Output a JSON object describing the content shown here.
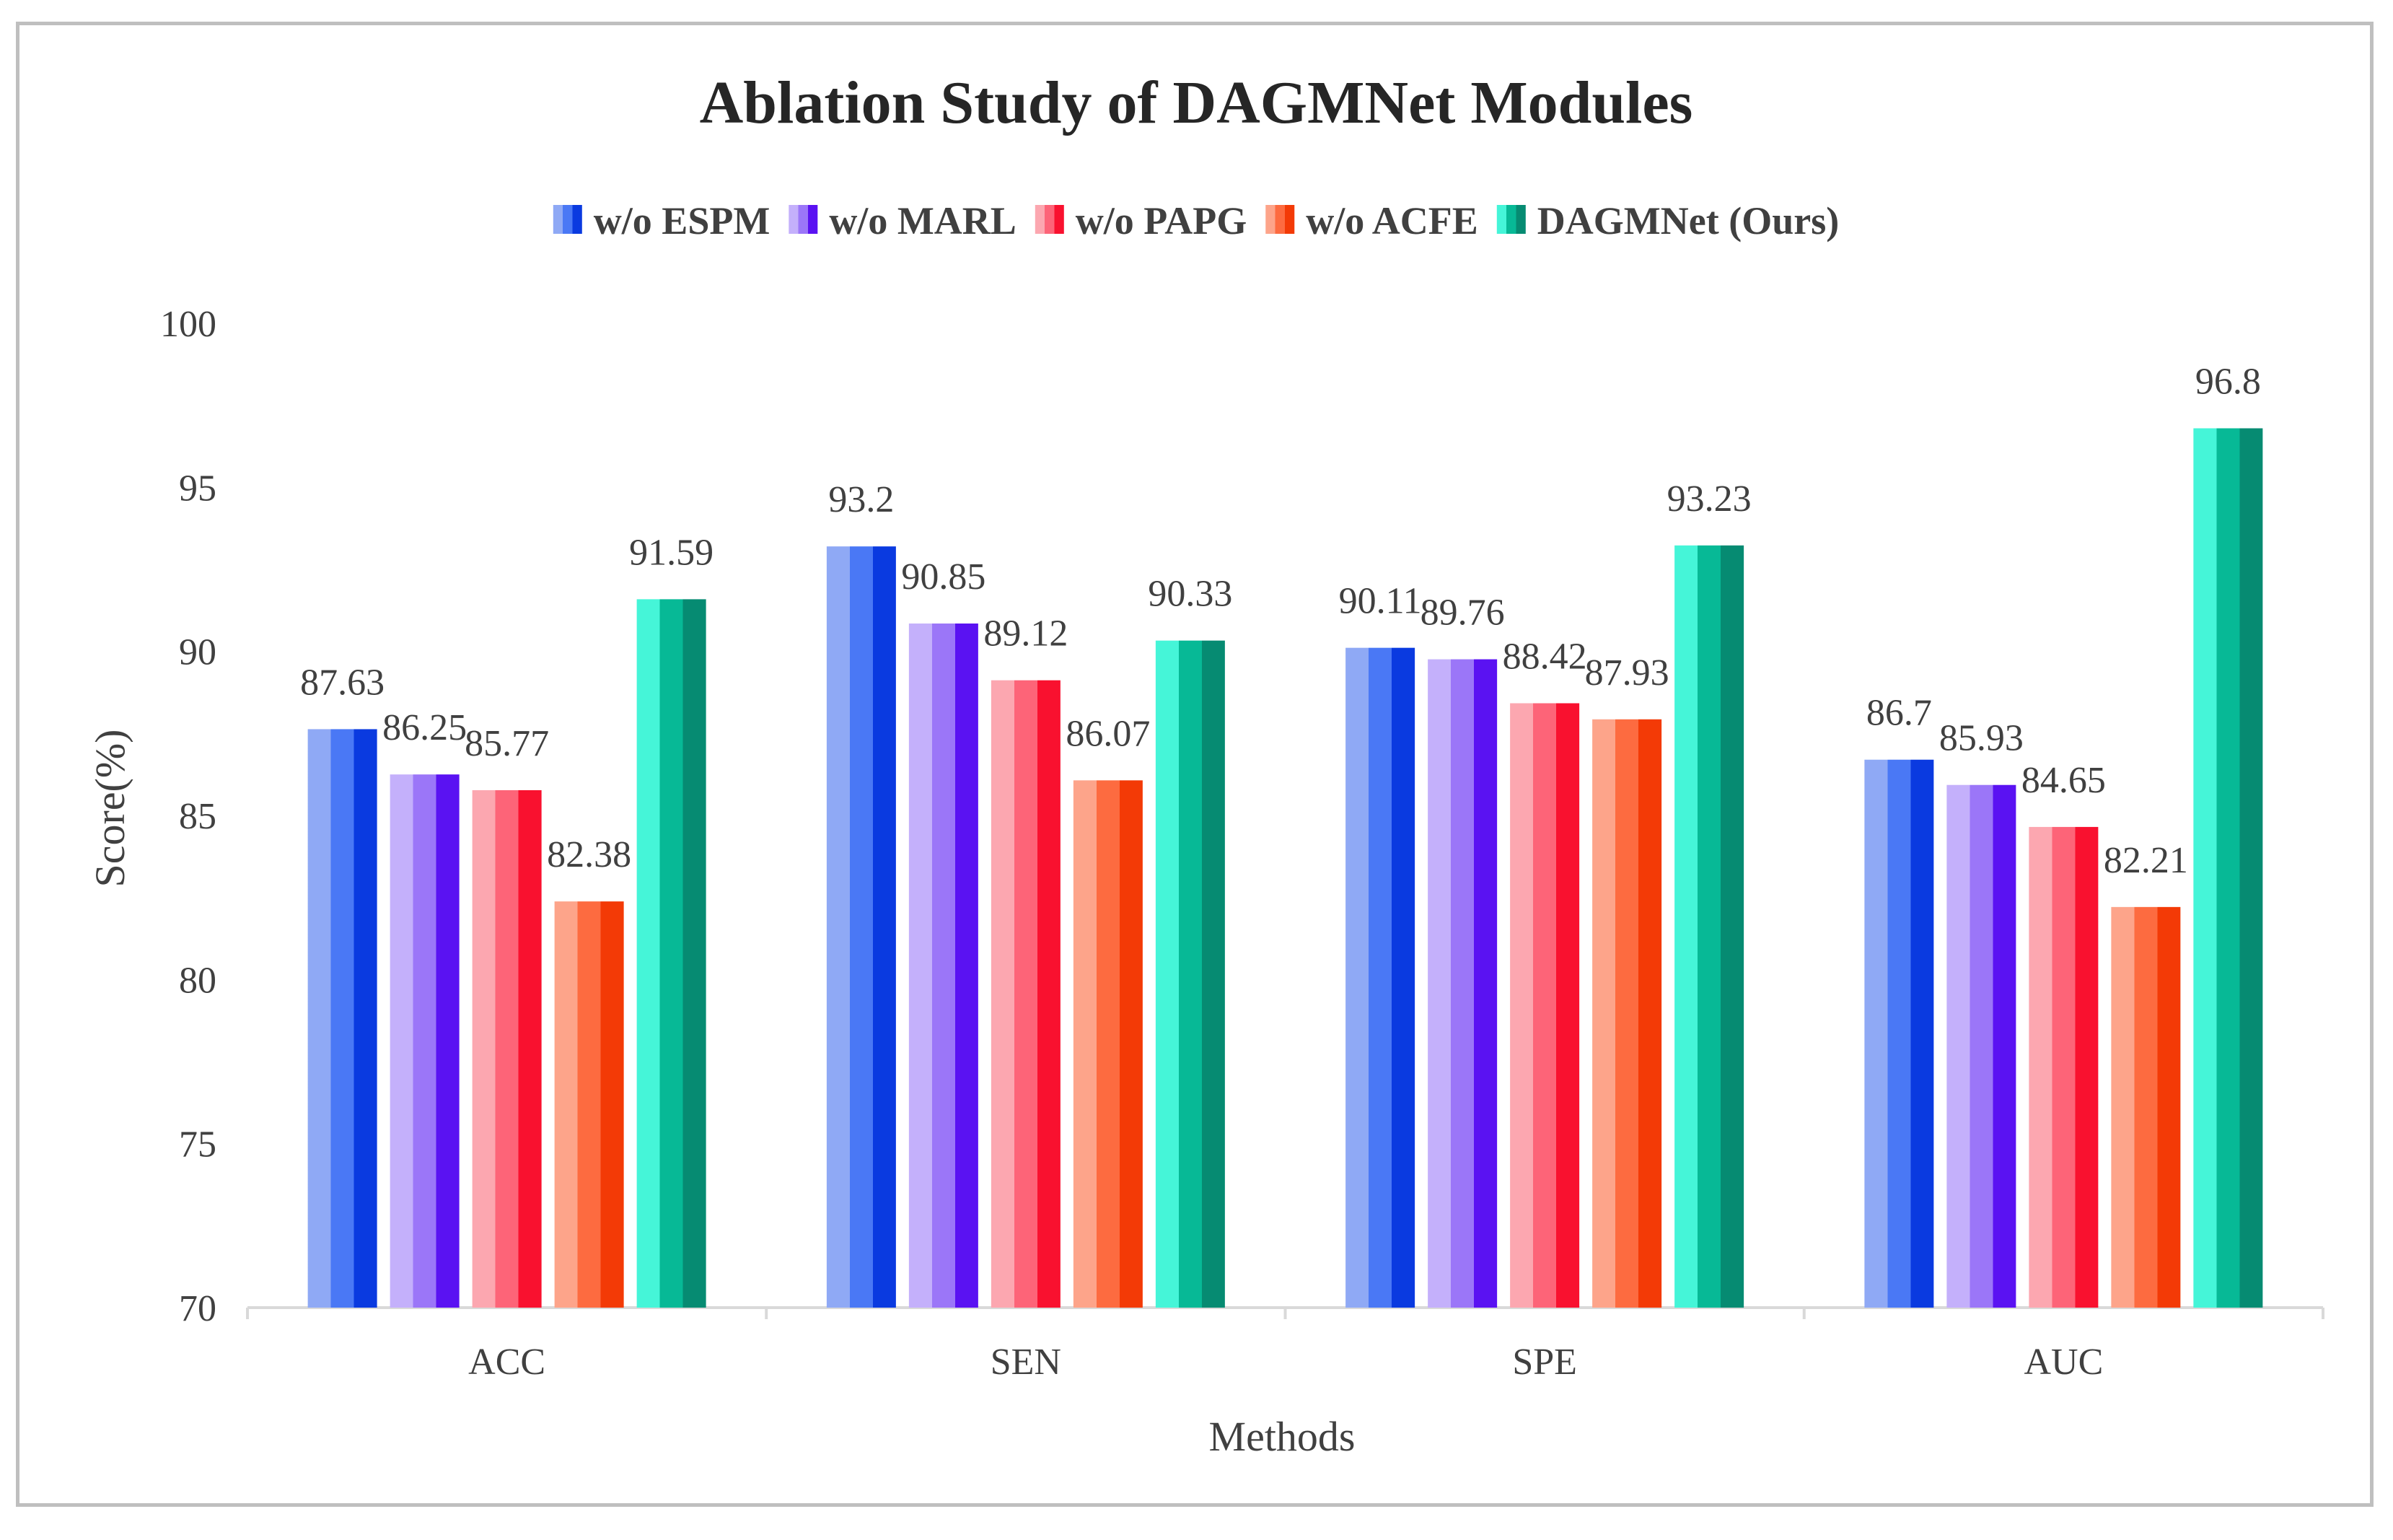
{
  "chart_data": {
    "type": "bar",
    "title": "Ablation Study of DAGMNet Modules",
    "xlabel": "Methods",
    "ylabel": "Score(%)",
    "ylim": [
      70,
      100
    ],
    "yticks": [
      70,
      75,
      80,
      85,
      90,
      95,
      100
    ],
    "grid": false,
    "legend_position": "top",
    "categories": [
      "ACC",
      "SEN",
      "SPE",
      "AUC"
    ],
    "series": [
      {
        "name": "w/o ESPM",
        "values": [
          87.63,
          93.2,
          90.11,
          86.7
        ],
        "colors": [
          "#8fa9f5",
          "#4a78f5",
          "#0a3ae0"
        ]
      },
      {
        "name": "w/o MARL",
        "values": [
          86.25,
          90.85,
          89.76,
          85.93
        ],
        "colors": [
          "#c4b0fb",
          "#9b76f8",
          "#5a12f2"
        ]
      },
      {
        "name": "w/o PAPG",
        "values": [
          85.77,
          89.12,
          88.42,
          84.65
        ],
        "colors": [
          "#fca7b0",
          "#fd6478",
          "#f9112f"
        ]
      },
      {
        "name": "w/o ACFE",
        "values": [
          82.38,
          86.07,
          87.93,
          82.21
        ],
        "colors": [
          "#fda48a",
          "#fd6b40",
          "#f33a06"
        ]
      },
      {
        "name": "DAGMNet (Ours)",
        "values": [
          91.59,
          90.33,
          93.23,
          96.8
        ],
        "colors": [
          "#45f5d8",
          "#07b996",
          "#068b72"
        ]
      }
    ]
  }
}
